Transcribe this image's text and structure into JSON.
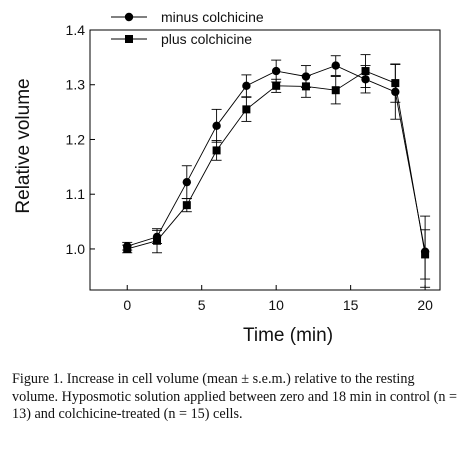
{
  "chart_data": {
    "type": "line",
    "xlabel": "Time (min)",
    "ylabel": "Relative volume",
    "xlim": [
      -2.5,
      21
    ],
    "ylim": [
      0.925,
      1.4
    ],
    "x_ticks": [
      "0",
      "5",
      "10",
      "15",
      "20"
    ],
    "x_tick_values": [
      0,
      5,
      10,
      15,
      20
    ],
    "y_ticks": [
      "1.0",
      "1.1",
      "1.2",
      "1.3",
      "1.4"
    ],
    "y_tick_values": [
      1.0,
      1.1,
      1.2,
      1.3,
      1.4
    ],
    "legend_position": "top-left",
    "series": [
      {
        "name": "minus colchicine",
        "marker": "circle",
        "x": [
          0,
          2,
          4,
          6,
          8,
          10,
          12,
          14,
          16,
          18,
          20
        ],
        "y": [
          1.005,
          1.022,
          1.122,
          1.225,
          1.298,
          1.325,
          1.315,
          1.335,
          1.31,
          1.287,
          0.995
        ],
        "err": [
          0.007,
          0.012,
          0.03,
          0.03,
          0.02,
          0.02,
          0.02,
          0.018,
          0.025,
          0.05,
          0.065
        ]
      },
      {
        "name": "plus colchicine",
        "marker": "square",
        "x": [
          0,
          2,
          4,
          6,
          8,
          10,
          12,
          14,
          16,
          18,
          20
        ],
        "y": [
          1.0,
          1.015,
          1.08,
          1.18,
          1.255,
          1.298,
          1.297,
          1.29,
          1.325,
          1.303,
          0.99
        ],
        "err": [
          0.007,
          0.022,
          0.012,
          0.018,
          0.022,
          0.012,
          0.02,
          0.025,
          0.03,
          0.035,
          0.045
        ]
      }
    ]
  },
  "caption": {
    "text": "Figure 1. Increase in cell volume (mean ± s.e.m.) relative to the resting volume. Hyposmotic solution applied between zero and 18 min in control (n = 13) and colchicine-treated (n = 15) cells."
  }
}
